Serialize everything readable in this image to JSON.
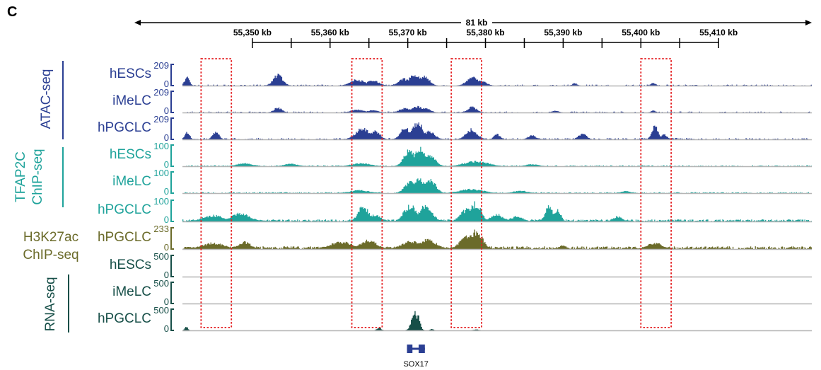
{
  "panel_label": "C",
  "colors": {
    "atac": "#2b3f93",
    "tfap2c": "#1fa39b",
    "h3k27ac": "#6b6b2a",
    "rna": "#174f48",
    "highlight": "#e41a1c",
    "baseline": "#b5b5b5",
    "gene": "#2b3f93"
  },
  "chart_data": {
    "type": "area",
    "title": "",
    "span_label": "81 kb",
    "xlim": [
      55341000,
      55422000
    ],
    "x_ticks": [
      55350000,
      55360000,
      55370000,
      55380000,
      55390000,
      55400000,
      55410000
    ],
    "x_tick_labels": [
      "55,350 kb",
      "55,360 kb",
      "55,370 kb",
      "55,380 kb",
      "55,390 kb",
      "55,400 kb",
      "55,410 kb"
    ],
    "highlight_regions": [
      [
        55343400,
        55347300
      ],
      [
        55362800,
        55366700
      ],
      [
        55375600,
        55379500
      ],
      [
        55400000,
        55403900
      ]
    ],
    "groups": [
      {
        "name": "ATAC-seq",
        "color_key": "atac",
        "tracks": [
          0,
          1,
          2
        ]
      },
      {
        "name": "TFAP2C ChIP-seq",
        "lines": [
          "TFAP2C",
          "ChIP-seq"
        ],
        "color_key": "tfap2c",
        "tracks": [
          3,
          4,
          5
        ]
      },
      {
        "name": "H3K27ac ChIP-seq",
        "lines": [
          "H3K27ac",
          "ChIP-seq"
        ],
        "color_key": "h3k27ac",
        "tracks": [
          6
        ]
      },
      {
        "name": "RNA-seq",
        "color_key": "rna",
        "tracks": [
          7,
          8,
          9
        ]
      }
    ],
    "series": [
      {
        "name": "hESCs",
        "group": "ATAC-seq",
        "ylim": [
          0,
          209
        ],
        "color_key": "atac",
        "baseline": 0.03,
        "density": 0.35,
        "peaks": [
          [
            55341600,
            0.45,
            300
          ],
          [
            55353300,
            0.55,
            600
          ],
          [
            55363500,
            0.3,
            900
          ],
          [
            55365500,
            0.25,
            800
          ],
          [
            55369500,
            0.35,
            700
          ],
          [
            55371000,
            0.55,
            900
          ],
          [
            55372200,
            0.45,
            600
          ],
          [
            55378300,
            0.45,
            700
          ],
          [
            55379500,
            0.25,
            600
          ],
          [
            55391500,
            0.12,
            300
          ],
          [
            55401600,
            0.15,
            300
          ]
        ]
      },
      {
        "name": "iMeLC",
        "group": "ATAC-seq",
        "ylim": [
          0,
          209
        ],
        "color_key": "atac",
        "baseline": 0.03,
        "density": 0.3,
        "peaks": [
          [
            55353300,
            0.25,
            500
          ],
          [
            55363500,
            0.15,
            800
          ],
          [
            55365500,
            0.12,
            700
          ],
          [
            55369600,
            0.2,
            700
          ],
          [
            55371200,
            0.3,
            900
          ],
          [
            55372300,
            0.22,
            600
          ],
          [
            55378300,
            0.28,
            600
          ],
          [
            55389000,
            0.1,
            400
          ],
          [
            55401600,
            0.1,
            300
          ]
        ]
      },
      {
        "name": "hPGCLC",
        "group": "ATAC-seq",
        "ylim": [
          0,
          209
        ],
        "color_key": "atac",
        "baseline": 0.04,
        "density": 0.4,
        "peaks": [
          [
            55341600,
            0.4,
            300
          ],
          [
            55345300,
            0.4,
            400
          ],
          [
            55364200,
            0.55,
            900
          ],
          [
            55365800,
            0.45,
            600
          ],
          [
            55369700,
            0.6,
            600
          ],
          [
            55371300,
            0.85,
            700
          ],
          [
            55372800,
            0.4,
            700
          ],
          [
            55378200,
            0.5,
            700
          ],
          [
            55381500,
            0.25,
            400
          ],
          [
            55386000,
            0.2,
            500
          ],
          [
            55392500,
            0.3,
            500
          ],
          [
            55401800,
            0.7,
            400
          ],
          [
            55403000,
            0.25,
            400
          ]
        ]
      },
      {
        "name": "hESCs",
        "group": "TFAP2C ChIP-seq",
        "ylim": [
          0,
          100
        ],
        "color_key": "tfap2c",
        "baseline": 0.03,
        "density": 0.55,
        "peaks": [
          [
            55349000,
            0.15,
            1000
          ],
          [
            55355000,
            0.12,
            900
          ],
          [
            55364000,
            0.15,
            1200
          ],
          [
            55370200,
            0.8,
            700
          ],
          [
            55371500,
            0.9,
            700
          ],
          [
            55372900,
            0.55,
            700
          ],
          [
            55378800,
            0.25,
            1500
          ],
          [
            55386000,
            0.1,
            800
          ]
        ]
      },
      {
        "name": "iMeLC",
        "group": "TFAP2C ChIP-seq",
        "ylim": [
          0,
          100
        ],
        "color_key": "tfap2c",
        "baseline": 0.03,
        "density": 0.55,
        "peaks": [
          [
            55363800,
            0.15,
            1200
          ],
          [
            55370300,
            0.55,
            700
          ],
          [
            55371400,
            0.75,
            700
          ],
          [
            55372900,
            0.65,
            700
          ],
          [
            55378200,
            0.2,
            1500
          ],
          [
            55384500,
            0.12,
            900
          ],
          [
            55398000,
            0.1,
            600
          ]
        ]
      },
      {
        "name": "hPGCLC",
        "group": "TFAP2C ChIP-seq",
        "ylim": [
          0,
          100
        ],
        "color_key": "tfap2c",
        "baseline": 0.06,
        "density": 0.85,
        "peaks": [
          [
            55345000,
            0.3,
            1400
          ],
          [
            55348500,
            0.4,
            1200
          ],
          [
            55364300,
            0.75,
            700
          ],
          [
            55365700,
            0.35,
            800
          ],
          [
            55370300,
            0.8,
            800
          ],
          [
            55372200,
            0.75,
            900
          ],
          [
            55377600,
            0.6,
            800
          ],
          [
            55378700,
            0.9,
            700
          ],
          [
            55381500,
            0.35,
            800
          ],
          [
            55384000,
            0.25,
            800
          ],
          [
            55388200,
            0.75,
            500
          ],
          [
            55389300,
            0.6,
            400
          ],
          [
            55397000,
            0.25,
            600
          ]
        ]
      },
      {
        "name": "hPGCLC",
        "group": "H3K27ac ChIP-seq",
        "ylim": [
          0,
          233
        ],
        "color_key": "h3k27ac",
        "baseline": 0.08,
        "density": 0.8,
        "peaks": [
          [
            55345000,
            0.3,
            1500
          ],
          [
            55349000,
            0.35,
            800
          ],
          [
            55361500,
            0.35,
            1500
          ],
          [
            55365000,
            0.45,
            1000
          ],
          [
            55370500,
            0.4,
            1200
          ],
          [
            55372500,
            0.45,
            1200
          ],
          [
            55377800,
            0.65,
            1000
          ],
          [
            55378800,
            0.9,
            800
          ],
          [
            55401800,
            0.3,
            1000
          ],
          [
            55390000,
            0.2,
            400
          ]
        ]
      },
      {
        "name": "hESCs",
        "group": "RNA-seq",
        "ylim": [
          0,
          500
        ],
        "color_key": "rna",
        "baseline": 0.0,
        "density": 0.0,
        "peaks": []
      },
      {
        "name": "iMeLC",
        "group": "RNA-seq",
        "ylim": [
          0,
          500
        ],
        "color_key": "rna",
        "baseline": 0.0,
        "density": 0.0,
        "peaks": []
      },
      {
        "name": "hPGCLC",
        "group": "RNA-seq",
        "ylim": [
          0,
          500
        ],
        "color_key": "rna",
        "baseline": 0.0,
        "density": 0.02,
        "peaks": [
          [
            55341500,
            0.18,
            200
          ],
          [
            55366300,
            0.15,
            250
          ],
          [
            55370900,
            0.9,
            400
          ],
          [
            55371300,
            0.75,
            300
          ],
          [
            55373100,
            0.08,
            200
          ],
          [
            55378800,
            0.05,
            300
          ]
        ]
      }
    ],
    "gene": {
      "name": "SOX17",
      "start": 55369900,
      "end": 55372200,
      "exons": [
        [
          55369900,
          55370600
        ],
        [
          55371400,
          55372200
        ]
      ]
    }
  }
}
